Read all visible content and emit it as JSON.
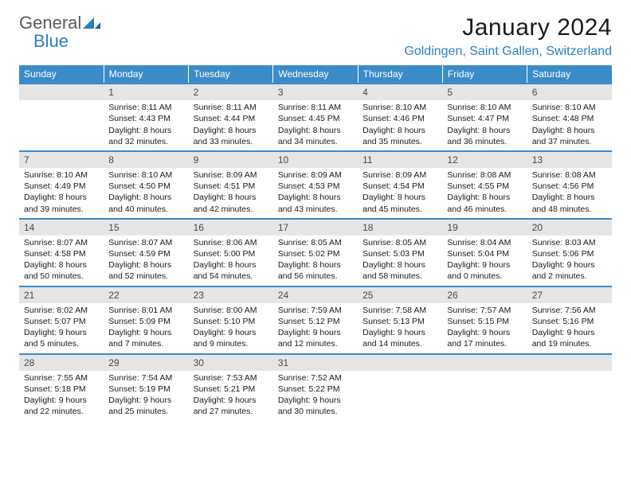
{
  "brand": {
    "general": "General",
    "blue": "Blue"
  },
  "title": "January 2024",
  "location": "Goldingen, Saint Gallen, Switzerland",
  "colors": {
    "header_bg": "#3b8bc9",
    "header_text": "#ffffff",
    "daynum_bg": "#e5e5e5",
    "accent": "#2b7fc3",
    "row_border": "#3b8bc9"
  },
  "day_headers": [
    "Sunday",
    "Monday",
    "Tuesday",
    "Wednesday",
    "Thursday",
    "Friday",
    "Saturday"
  ],
  "weeks": [
    [
      {
        "n": "",
        "sunrise": "",
        "sunset": "",
        "daylight": ""
      },
      {
        "n": "1",
        "sunrise": "Sunrise: 8:11 AM",
        "sunset": "Sunset: 4:43 PM",
        "daylight": "Daylight: 8 hours and 32 minutes."
      },
      {
        "n": "2",
        "sunrise": "Sunrise: 8:11 AM",
        "sunset": "Sunset: 4:44 PM",
        "daylight": "Daylight: 8 hours and 33 minutes."
      },
      {
        "n": "3",
        "sunrise": "Sunrise: 8:11 AM",
        "sunset": "Sunset: 4:45 PM",
        "daylight": "Daylight: 8 hours and 34 minutes."
      },
      {
        "n": "4",
        "sunrise": "Sunrise: 8:10 AM",
        "sunset": "Sunset: 4:46 PM",
        "daylight": "Daylight: 8 hours and 35 minutes."
      },
      {
        "n": "5",
        "sunrise": "Sunrise: 8:10 AM",
        "sunset": "Sunset: 4:47 PM",
        "daylight": "Daylight: 8 hours and 36 minutes."
      },
      {
        "n": "6",
        "sunrise": "Sunrise: 8:10 AM",
        "sunset": "Sunset: 4:48 PM",
        "daylight": "Daylight: 8 hours and 37 minutes."
      }
    ],
    [
      {
        "n": "7",
        "sunrise": "Sunrise: 8:10 AM",
        "sunset": "Sunset: 4:49 PM",
        "daylight": "Daylight: 8 hours and 39 minutes."
      },
      {
        "n": "8",
        "sunrise": "Sunrise: 8:10 AM",
        "sunset": "Sunset: 4:50 PM",
        "daylight": "Daylight: 8 hours and 40 minutes."
      },
      {
        "n": "9",
        "sunrise": "Sunrise: 8:09 AM",
        "sunset": "Sunset: 4:51 PM",
        "daylight": "Daylight: 8 hours and 42 minutes."
      },
      {
        "n": "10",
        "sunrise": "Sunrise: 8:09 AM",
        "sunset": "Sunset: 4:53 PM",
        "daylight": "Daylight: 8 hours and 43 minutes."
      },
      {
        "n": "11",
        "sunrise": "Sunrise: 8:09 AM",
        "sunset": "Sunset: 4:54 PM",
        "daylight": "Daylight: 8 hours and 45 minutes."
      },
      {
        "n": "12",
        "sunrise": "Sunrise: 8:08 AM",
        "sunset": "Sunset: 4:55 PM",
        "daylight": "Daylight: 8 hours and 46 minutes."
      },
      {
        "n": "13",
        "sunrise": "Sunrise: 8:08 AM",
        "sunset": "Sunset: 4:56 PM",
        "daylight": "Daylight: 8 hours and 48 minutes."
      }
    ],
    [
      {
        "n": "14",
        "sunrise": "Sunrise: 8:07 AM",
        "sunset": "Sunset: 4:58 PM",
        "daylight": "Daylight: 8 hours and 50 minutes."
      },
      {
        "n": "15",
        "sunrise": "Sunrise: 8:07 AM",
        "sunset": "Sunset: 4:59 PM",
        "daylight": "Daylight: 8 hours and 52 minutes."
      },
      {
        "n": "16",
        "sunrise": "Sunrise: 8:06 AM",
        "sunset": "Sunset: 5:00 PM",
        "daylight": "Daylight: 8 hours and 54 minutes."
      },
      {
        "n": "17",
        "sunrise": "Sunrise: 8:05 AM",
        "sunset": "Sunset: 5:02 PM",
        "daylight": "Daylight: 8 hours and 56 minutes."
      },
      {
        "n": "18",
        "sunrise": "Sunrise: 8:05 AM",
        "sunset": "Sunset: 5:03 PM",
        "daylight": "Daylight: 8 hours and 58 minutes."
      },
      {
        "n": "19",
        "sunrise": "Sunrise: 8:04 AM",
        "sunset": "Sunset: 5:04 PM",
        "daylight": "Daylight: 9 hours and 0 minutes."
      },
      {
        "n": "20",
        "sunrise": "Sunrise: 8:03 AM",
        "sunset": "Sunset: 5:06 PM",
        "daylight": "Daylight: 9 hours and 2 minutes."
      }
    ],
    [
      {
        "n": "21",
        "sunrise": "Sunrise: 8:02 AM",
        "sunset": "Sunset: 5:07 PM",
        "daylight": "Daylight: 9 hours and 5 minutes."
      },
      {
        "n": "22",
        "sunrise": "Sunrise: 8:01 AM",
        "sunset": "Sunset: 5:09 PM",
        "daylight": "Daylight: 9 hours and 7 minutes."
      },
      {
        "n": "23",
        "sunrise": "Sunrise: 8:00 AM",
        "sunset": "Sunset: 5:10 PM",
        "daylight": "Daylight: 9 hours and 9 minutes."
      },
      {
        "n": "24",
        "sunrise": "Sunrise: 7:59 AM",
        "sunset": "Sunset: 5:12 PM",
        "daylight": "Daylight: 9 hours and 12 minutes."
      },
      {
        "n": "25",
        "sunrise": "Sunrise: 7:58 AM",
        "sunset": "Sunset: 5:13 PM",
        "daylight": "Daylight: 9 hours and 14 minutes."
      },
      {
        "n": "26",
        "sunrise": "Sunrise: 7:57 AM",
        "sunset": "Sunset: 5:15 PM",
        "daylight": "Daylight: 9 hours and 17 minutes."
      },
      {
        "n": "27",
        "sunrise": "Sunrise: 7:56 AM",
        "sunset": "Sunset: 5:16 PM",
        "daylight": "Daylight: 9 hours and 19 minutes."
      }
    ],
    [
      {
        "n": "28",
        "sunrise": "Sunrise: 7:55 AM",
        "sunset": "Sunset: 5:18 PM",
        "daylight": "Daylight: 9 hours and 22 minutes."
      },
      {
        "n": "29",
        "sunrise": "Sunrise: 7:54 AM",
        "sunset": "Sunset: 5:19 PM",
        "daylight": "Daylight: 9 hours and 25 minutes."
      },
      {
        "n": "30",
        "sunrise": "Sunrise: 7:53 AM",
        "sunset": "Sunset: 5:21 PM",
        "daylight": "Daylight: 9 hours and 27 minutes."
      },
      {
        "n": "31",
        "sunrise": "Sunrise: 7:52 AM",
        "sunset": "Sunset: 5:22 PM",
        "daylight": "Daylight: 9 hours and 30 minutes."
      },
      {
        "n": "",
        "sunrise": "",
        "sunset": "",
        "daylight": ""
      },
      {
        "n": "",
        "sunrise": "",
        "sunset": "",
        "daylight": ""
      },
      {
        "n": "",
        "sunrise": "",
        "sunset": "",
        "daylight": ""
      }
    ]
  ]
}
